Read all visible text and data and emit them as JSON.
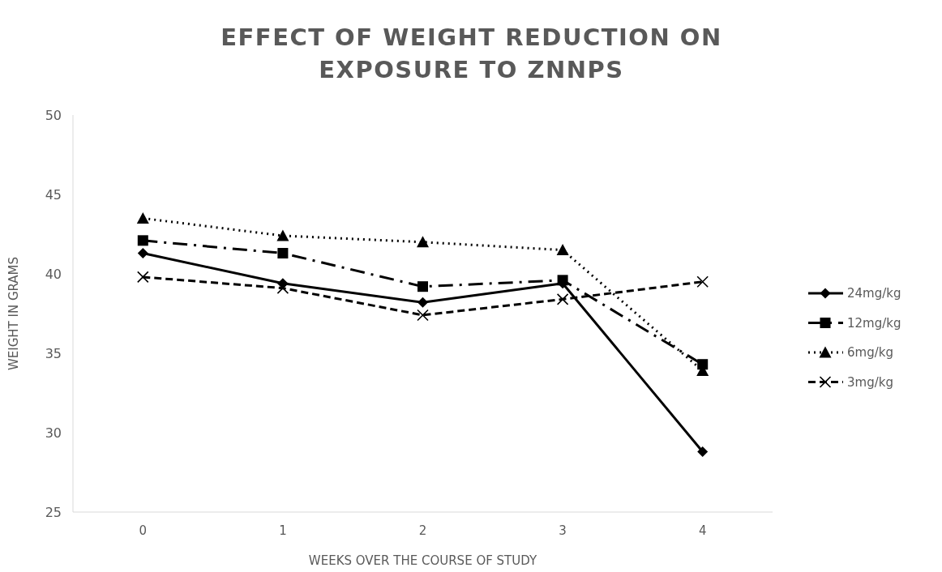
{
  "chart_data": {
    "type": "line",
    "title": "EFFECT  OF WEIGHT REDUCTION ON EXPOSURE TO ZNNPS",
    "xlabel": "WEEKS OVER THE COURSE OF STUDY",
    "ylabel": "WEIGHT IN GRAMS",
    "categories": [
      "0",
      "1",
      "2",
      "3",
      "4"
    ],
    "series": [
      {
        "name": "24mg/kg",
        "color": "#000000",
        "marker": "diamond",
        "line_style": "solid",
        "values": [
          41.3,
          39.4,
          38.2,
          39.4,
          28.8
        ]
      },
      {
        "name": "12mg/kg",
        "color": "#000000",
        "marker": "square",
        "line_style": "dashdot",
        "values": [
          42.1,
          41.3,
          39.2,
          39.6,
          34.3
        ]
      },
      {
        "name": "6mg/kg",
        "color": "#000000",
        "marker": "triangle",
        "line_style": "dotted",
        "values": [
          43.5,
          42.4,
          42.0,
          41.5,
          33.9
        ]
      },
      {
        "name": "3mg/kg",
        "color": "#000000",
        "marker": "cross",
        "line_style": "dashed",
        "values": [
          39.8,
          39.1,
          37.4,
          38.4,
          39.5
        ]
      }
    ],
    "ylim": [
      25,
      50
    ],
    "yticks": [
      25,
      30,
      35,
      40,
      45,
      50
    ],
    "grid": false,
    "legend": "right"
  }
}
